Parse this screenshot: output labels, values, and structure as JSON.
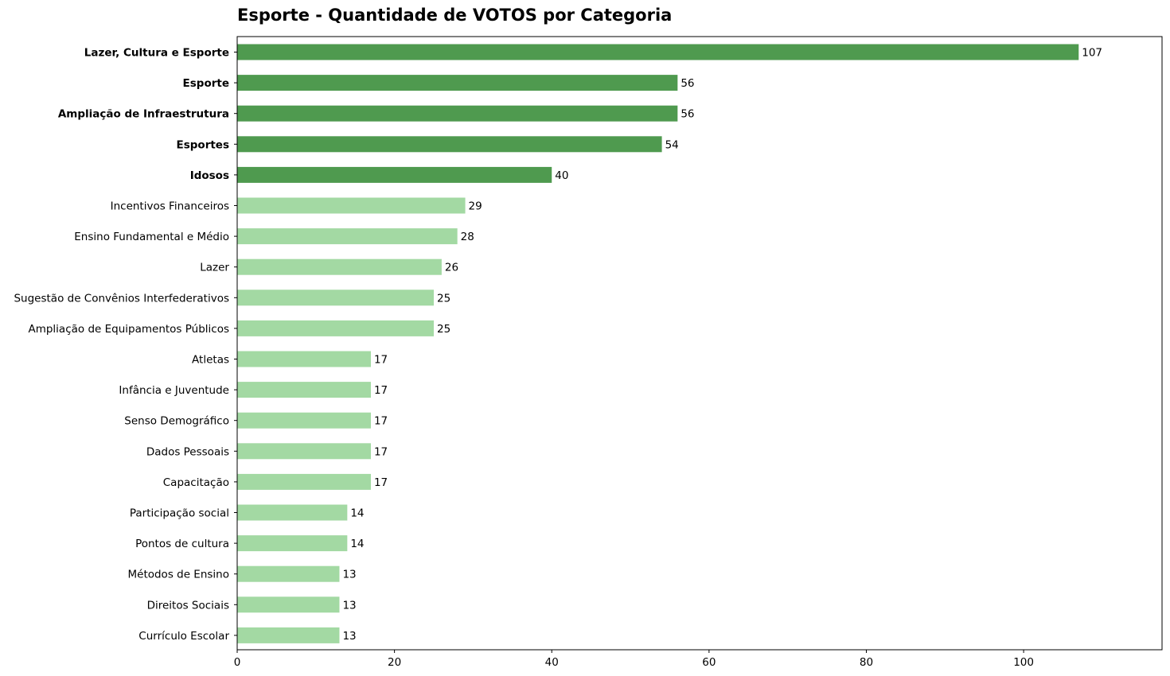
{
  "chart_data": {
    "type": "bar",
    "orientation": "horizontal",
    "title": "Esporte - Quantidade de VOTOS por Categoria",
    "xlabel": "",
    "ylabel": "",
    "xlim": [
      0,
      117.6
    ],
    "xticks": [
      0,
      20,
      40,
      60,
      80,
      100
    ],
    "grid": false,
    "highlight_top_n": 5,
    "colors": {
      "highlight": "#4f9a4f",
      "normal": "#a3d9a3"
    },
    "categories": [
      "Lazer, Cultura e Esporte",
      "Esporte",
      "Ampliação de Infraestrutura",
      "Esportes",
      "Idosos",
      "Incentivos Financeiros",
      "Ensino Fundamental e Médio",
      "Lazer",
      "Sugestão de Convênios Interfederativos",
      "Ampliação de Equipamentos Públicos",
      "Atletas",
      "Infância e Juventude",
      "Senso Demográfico",
      "Dados Pessoais",
      "Capacitação",
      "Participação social",
      "Pontos de cultura",
      "Métodos de Ensino",
      "Direitos Sociais",
      "Currículo Escolar"
    ],
    "values": [
      107,
      56,
      56,
      54,
      40,
      29,
      28,
      26,
      25,
      25,
      17,
      17,
      17,
      17,
      17,
      14,
      14,
      13,
      13,
      13
    ]
  }
}
